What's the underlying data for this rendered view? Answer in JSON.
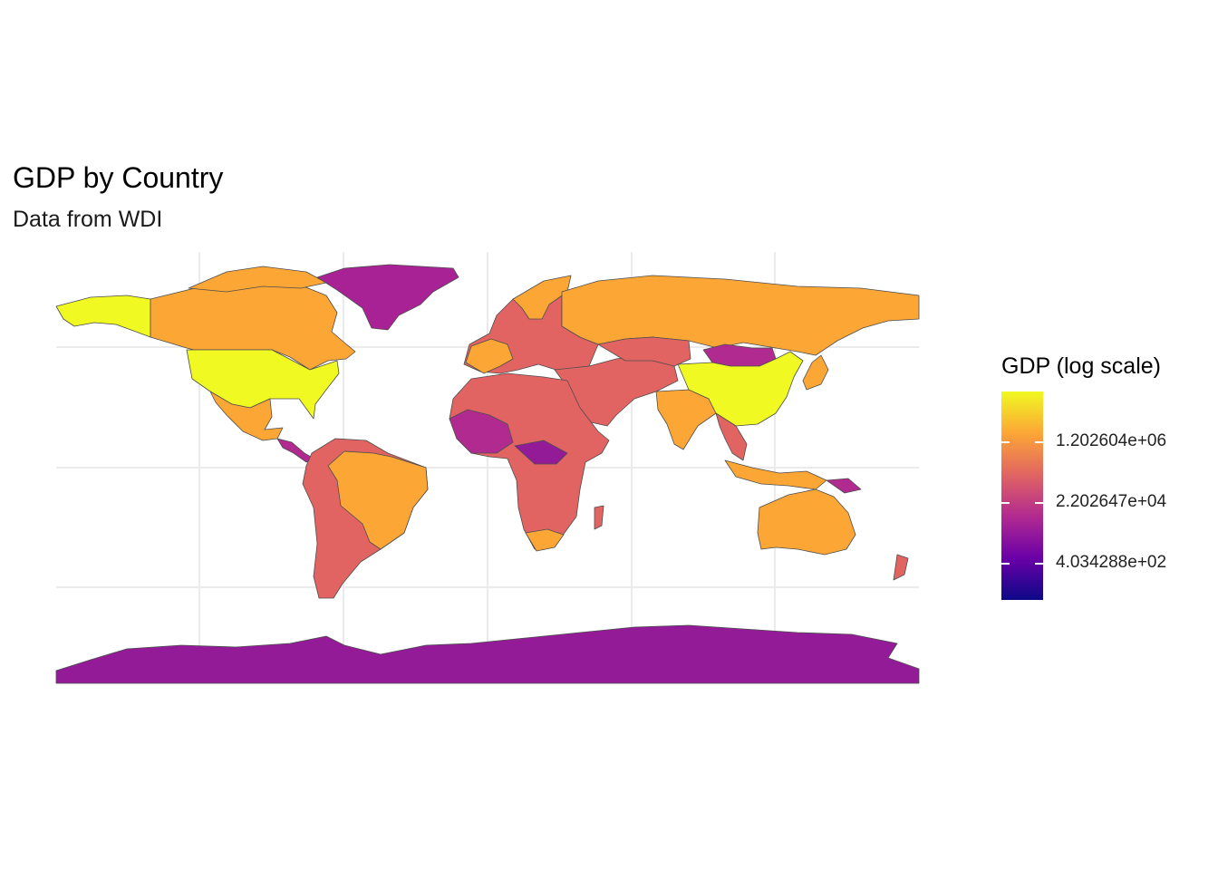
{
  "title": "GDP by Country",
  "subtitle": "Data from WDI",
  "legend": {
    "title": "GDP (log scale)",
    "ticks": [
      {
        "label": "1.202604e+06",
        "value": 1202604
      },
      {
        "label": "2.202647e+04",
        "value": 22026.47
      },
      {
        "label": "4.034288e+02",
        "value": 403.4288
      }
    ],
    "palette": [
      "#0d0887",
      "#6a00a8",
      "#b12a90",
      "#e16462",
      "#fca636",
      "#f0f921"
    ]
  },
  "chart_data": {
    "type": "choropleth",
    "projection": "equirectangular",
    "scale": "log",
    "grid": true,
    "legend_position": "right",
    "regions": [
      {
        "name": "United States",
        "color": "#f0f921"
      },
      {
        "name": "China",
        "color": "#f0f921"
      },
      {
        "name": "Canada",
        "color": "#fca636"
      },
      {
        "name": "Russia",
        "color": "#fca636"
      },
      {
        "name": "Brazil",
        "color": "#fca636"
      },
      {
        "name": "India",
        "color": "#fca636"
      },
      {
        "name": "Australia",
        "color": "#fca636"
      },
      {
        "name": "Greenland",
        "color": "#a82296"
      },
      {
        "name": "Antarctica",
        "color": "#941b98"
      },
      {
        "name": "Mongolia",
        "color": "#b12a90"
      },
      {
        "name": "Africa (most)",
        "color": "#e16462"
      }
    ]
  }
}
